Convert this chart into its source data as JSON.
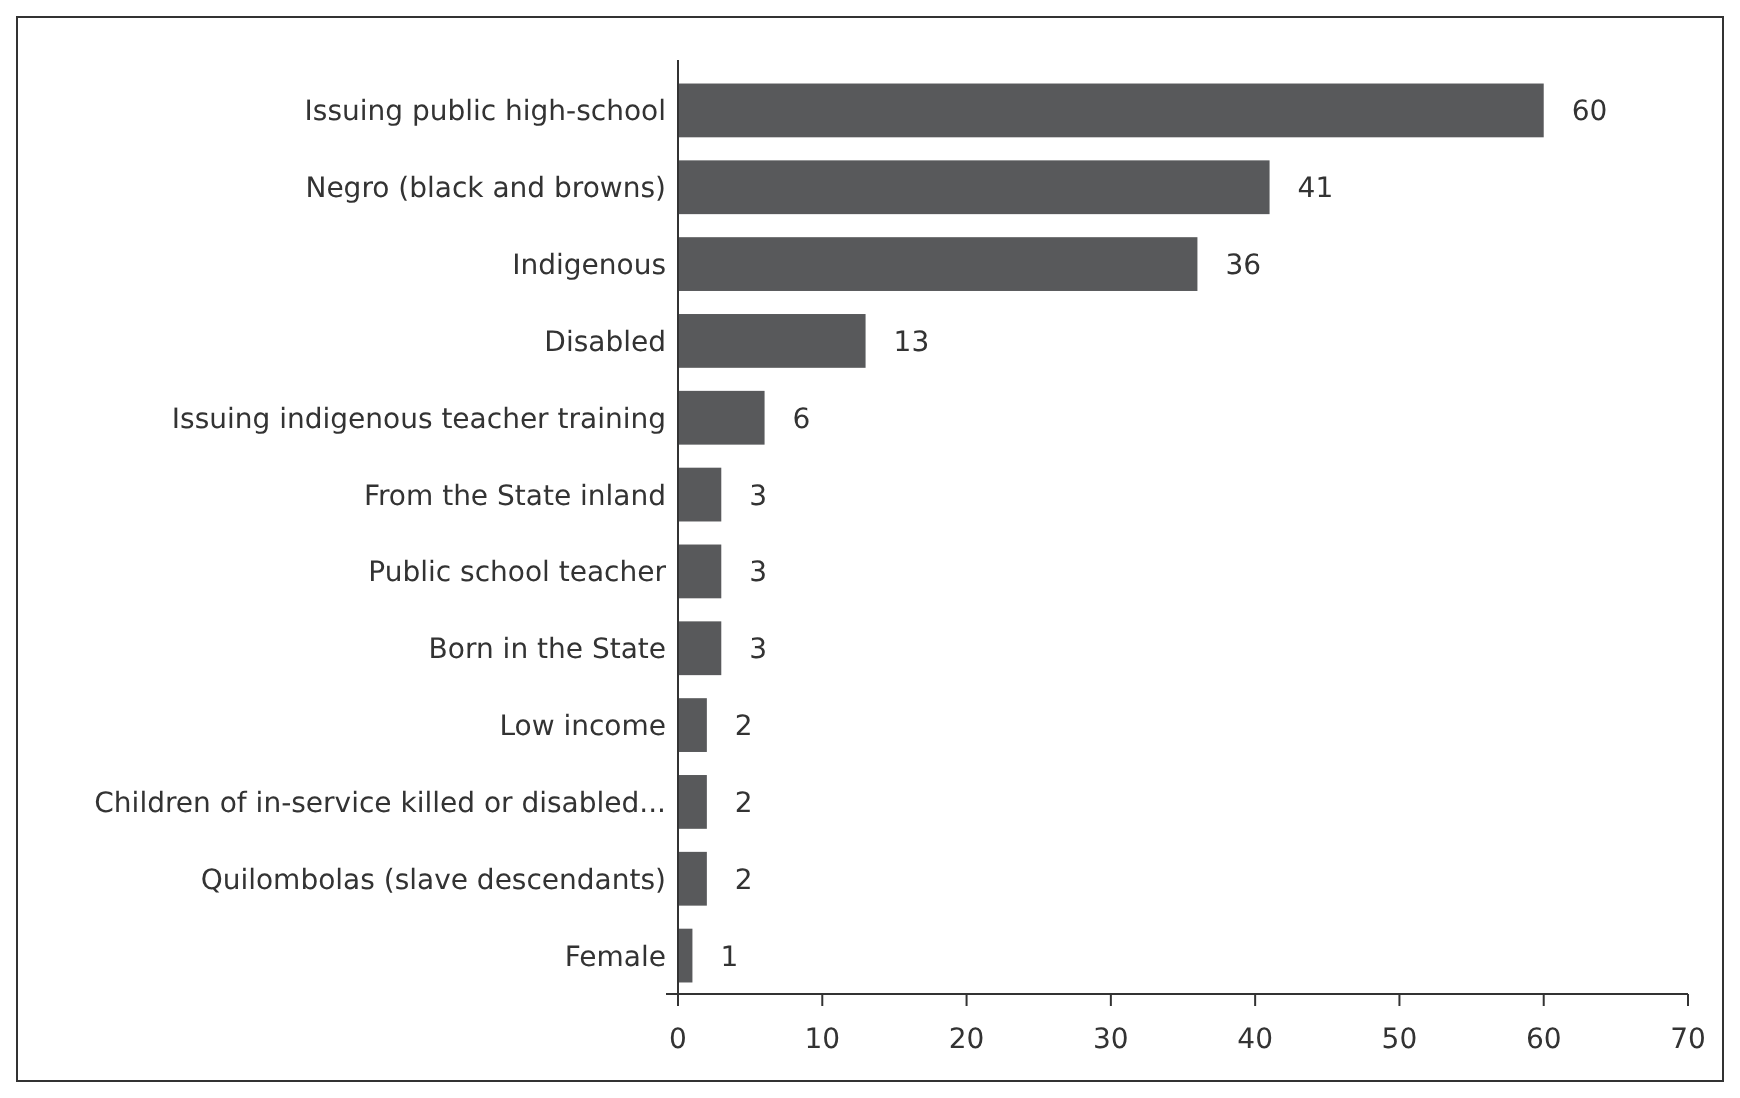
{
  "chart_data": {
    "type": "bar",
    "orientation": "horizontal",
    "categories": [
      "Issuing public high-school",
      "Negro (black and browns)",
      "Indigenous",
      "Disabled",
      "Issuing indigenous teacher training",
      "From the State inland",
      "Public school teacher",
      "Born in the State",
      "Low income",
      "Children of in-service killed or disabled...",
      "Quilombolas (slave descendants)",
      "Female"
    ],
    "values": [
      60,
      41,
      36,
      13,
      6,
      3,
      3,
      3,
      2,
      2,
      2,
      1
    ],
    "color": "#58595b",
    "xlim": [
      0,
      70
    ],
    "xticks": [
      0,
      10,
      20,
      30,
      40,
      50,
      60,
      70
    ],
    "data_labels": true
  }
}
